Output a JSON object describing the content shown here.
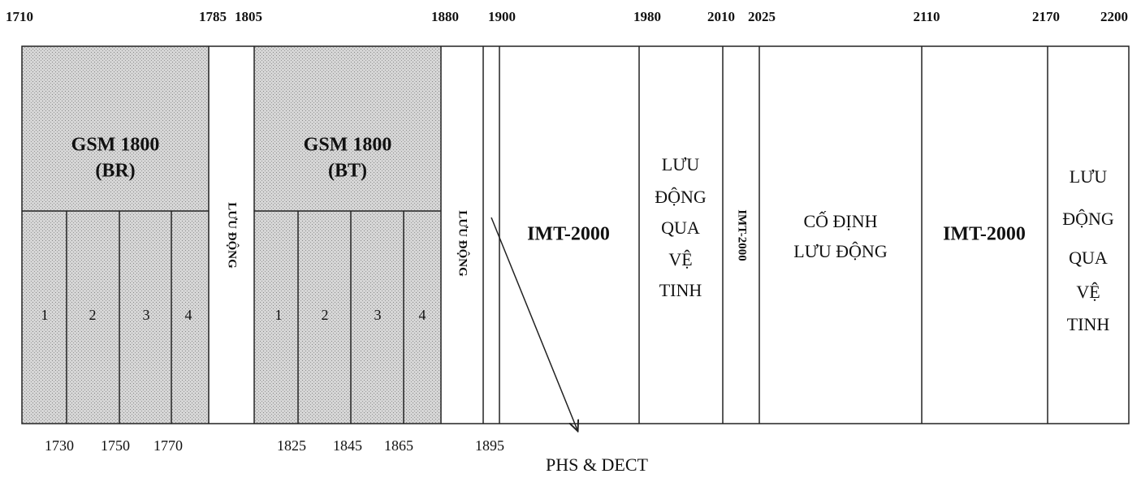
{
  "top_labels": [
    "1710",
    "1785",
    "1805",
    "1880",
    "1900",
    "1980",
    "2010",
    "2025",
    "2110",
    "2170",
    "2200"
  ],
  "bottom_labels": [
    "1730",
    "1750",
    "1770",
    "1825",
    "1845",
    "1865",
    "1895"
  ],
  "blocks": [
    {
      "lines": [
        "GSM 1800",
        "(BR)"
      ]
    },
    {
      "lines": [
        "LƯU ĐỘNG"
      ]
    },
    {
      "lines": [
        "GSM 1800",
        "(BT)"
      ]
    },
    {
      "lines": [
        "LƯU ĐỘNG"
      ]
    },
    {
      "lines": [
        "IMT-2000"
      ]
    },
    {
      "lines": [
        "LƯU",
        "ĐỘNG",
        "QUA",
        "VỆ",
        "TINH"
      ]
    },
    {
      "lines": [
        "IMT-2000"
      ]
    },
    {
      "lines": [
        "CỐ ĐỊNH",
        "LƯU ĐỘNG"
      ]
    },
    {
      "lines": [
        "IMT-2000"
      ]
    },
    {
      "lines": [
        "LƯU",
        "ĐỘNG",
        "QUA",
        "VỆ",
        "TINH"
      ]
    }
  ],
  "sub_channels": [
    [
      "1",
      "2",
      "3",
      "4"
    ],
    [
      "1",
      "2",
      "3",
      "4"
    ]
  ],
  "annotation": "PHS & DECT"
}
